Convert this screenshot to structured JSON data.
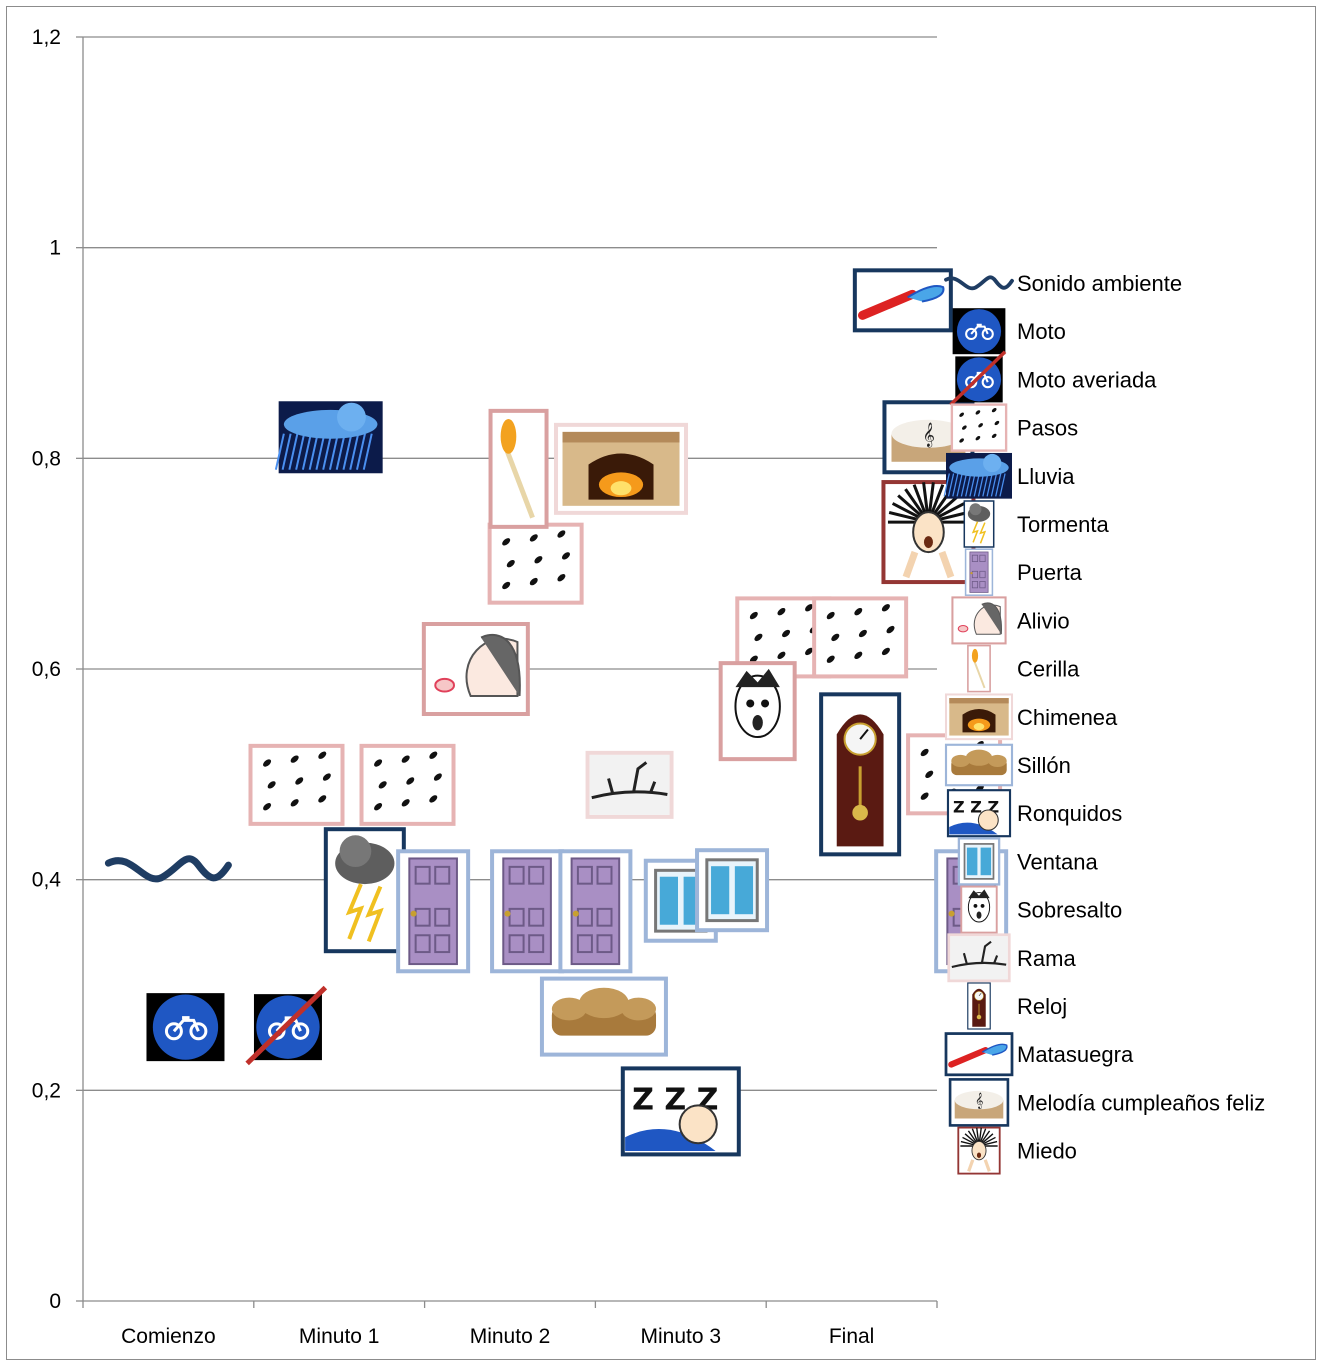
{
  "chart_data": {
    "type": "scatter",
    "title": "",
    "xlabel": "",
    "ylabel": "",
    "categories": [
      "Comienzo",
      "Minuto 1",
      "Minuto 2",
      "Minuto 3",
      "Final"
    ],
    "ylim": [
      0,
      1.2
    ],
    "yticks": [
      "0",
      "0,2",
      "0,4",
      "0,6",
      "0,8",
      "1",
      "1,2"
    ],
    "grid": true,
    "legend_position": "right",
    "series": [
      {
        "name": "Sonido ambiente",
        "icon": "wave-icon",
        "color": "#1f3d63",
        "points": [
          {
            "x": 0.5,
            "y": 0.41
          }
        ]
      },
      {
        "name": "Moto",
        "icon": "motorbike-sign-icon",
        "color": "#1f4fa8",
        "points": [
          {
            "x": 0.6,
            "y": 0.26
          }
        ]
      },
      {
        "name": "Moto averiada",
        "icon": "broken-motorbike-sign-icon",
        "color": "#c0302a",
        "points": [
          {
            "x": 1.2,
            "y": 0.26
          }
        ]
      },
      {
        "name": "Pasos",
        "icon": "footsteps-icon",
        "color": "#e6b3b3",
        "points": [
          {
            "x": 1.25,
            "y": 0.49
          },
          {
            "x": 1.9,
            "y": 0.49
          },
          {
            "x": 2.65,
            "y": 0.7
          },
          {
            "x": 4.1,
            "y": 0.63
          },
          {
            "x": 4.55,
            "y": 0.63
          },
          {
            "x": 5.1,
            "y": 0.5
          }
        ]
      },
      {
        "name": "Lluvia",
        "icon": "rain-cloud-icon",
        "color": "#17375e",
        "points": [
          {
            "x": 1.45,
            "y": 0.82
          }
        ]
      },
      {
        "name": "Tormenta",
        "icon": "storm-cloud-icon",
        "color": "#17375e",
        "points": [
          {
            "x": 1.65,
            "y": 0.39
          }
        ]
      },
      {
        "name": "Puerta",
        "icon": "door-icon",
        "color": "#9db5d9",
        "points": [
          {
            "x": 2.05,
            "y": 0.37
          },
          {
            "x": 2.6,
            "y": 0.37
          },
          {
            "x": 3.0,
            "y": 0.37
          },
          {
            "x": 5.2,
            "y": 0.37
          }
        ]
      },
      {
        "name": "Alivio",
        "icon": "relief-face-icon",
        "color": "#d9a0a0",
        "points": [
          {
            "x": 2.3,
            "y": 0.6
          }
        ]
      },
      {
        "name": "Cerilla",
        "icon": "match-icon",
        "color": "#d9a0a0",
        "points": [
          {
            "x": 2.55,
            "y": 0.79
          }
        ]
      },
      {
        "name": "Chimenea",
        "icon": "fireplace-icon",
        "color": "#f0d8d8",
        "points": [
          {
            "x": 3.15,
            "y": 0.79
          }
        ]
      },
      {
        "name": "Sillón",
        "icon": "sofa-icon",
        "color": "#9db5d9",
        "points": [
          {
            "x": 3.05,
            "y": 0.27
          }
        ]
      },
      {
        "name": "Ronquidos",
        "icon": "snoring-icon",
        "color": "#17375e",
        "points": [
          {
            "x": 3.5,
            "y": 0.18
          }
        ]
      },
      {
        "name": "Ventana",
        "icon": "window-icon",
        "color": "#9db5d9",
        "points": [
          {
            "x": 3.5,
            "y": 0.38
          },
          {
            "x": 3.8,
            "y": 0.39
          }
        ]
      },
      {
        "name": "Sobresalto",
        "icon": "startled-face-icon",
        "color": "#d9a0a0",
        "points": [
          {
            "x": 3.95,
            "y": 0.56
          }
        ]
      },
      {
        "name": "Rama",
        "icon": "branch-icon",
        "color": "#f0d8d8",
        "points": [
          {
            "x": 3.2,
            "y": 0.49
          }
        ]
      },
      {
        "name": "Reloj",
        "icon": "grandfather-clock-icon",
        "color": "#17375e",
        "points": [
          {
            "x": 4.55,
            "y": 0.5
          }
        ]
      },
      {
        "name": "Matasuegra",
        "icon": "party-horn-icon",
        "color": "#17375e",
        "points": [
          {
            "x": 4.8,
            "y": 0.95
          }
        ]
      },
      {
        "name": "Melodía cumpleaños feliz",
        "icon": "birthday-cake-icon",
        "color": "#17375e",
        "points": [
          {
            "x": 4.95,
            "y": 0.82
          }
        ]
      },
      {
        "name": "Miedo",
        "icon": "scared-face-icon",
        "color": "#943634",
        "points": [
          {
            "x": 4.95,
            "y": 0.73
          }
        ]
      }
    ]
  }
}
